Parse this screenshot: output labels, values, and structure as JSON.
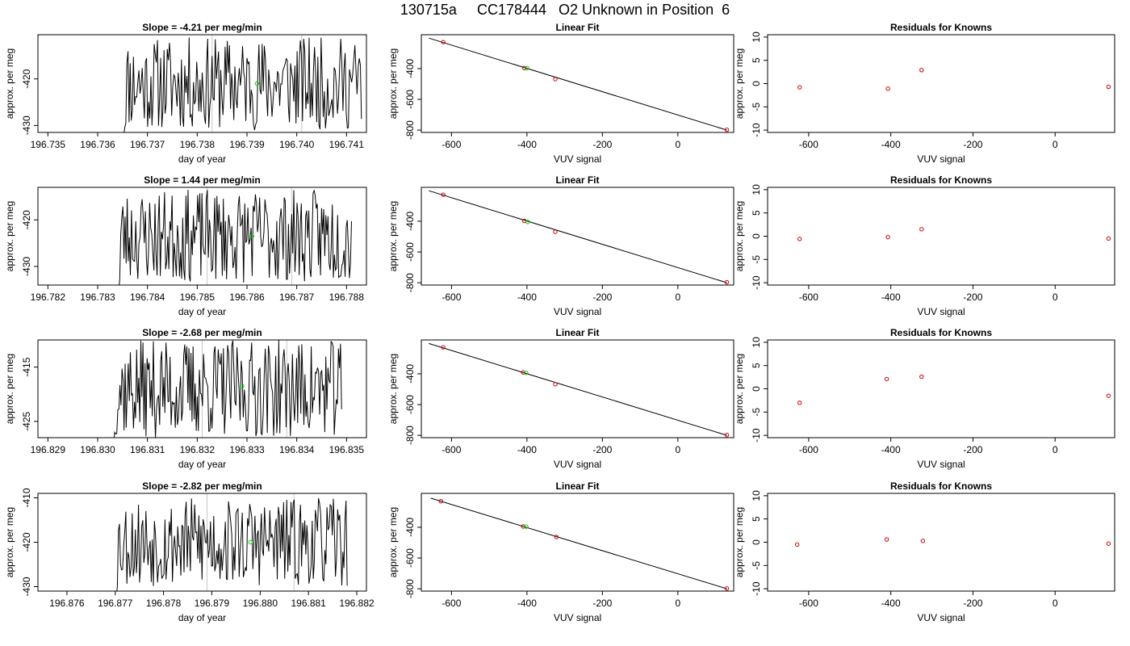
{
  "title": "130715a     CC178444   O2 Unknown in Position  6",
  "colors": {
    "axes": "#000000",
    "trace": "#000000",
    "marker": "#00cc00",
    "point": "#cc0000",
    "vline": "#c8c8c8"
  },
  "chart_data": [
    {
      "type": "line",
      "row": 0,
      "col": 0,
      "title": "Slope =  -4.21  per meg/min",
      "xlabel": "day of year",
      "ylabel": "approx. per meg",
      "xlim": [
        196.7348,
        196.7414
      ],
      "ylim": [
        -431.5,
        -410.5
      ],
      "xticks": [
        196.735,
        196.736,
        196.737,
        196.738,
        196.739,
        196.74,
        196.741
      ],
      "xtick_labels": [
        "196.735",
        "196.736",
        "196.737",
        "196.738",
        "196.739",
        "196.740",
        "196.741"
      ],
      "yticks": [
        -420,
        -430
      ],
      "ytick_labels": [
        "-420",
        "-430"
      ],
      "x_start": 196.7365,
      "x_end": 196.7413,
      "seed": 11,
      "amp": 10,
      "vlines": [
        196.7383,
        196.7401
      ],
      "marker": {
        "x": 196.7392,
        "y": -421
      }
    },
    {
      "type": "line",
      "row": 1,
      "col": 0,
      "title": "Slope =  1.44  per meg/min",
      "xlabel": "day of year",
      "ylabel": "approx. per meg",
      "xlim": [
        196.7818,
        196.7884
      ],
      "ylim": [
        -434,
        -413
      ],
      "xticks": [
        196.782,
        196.783,
        196.784,
        196.785,
        196.786,
        196.787,
        196.788
      ],
      "xtick_labels": [
        "196.782",
        "196.783",
        "196.784",
        "196.785",
        "196.786",
        "196.787",
        "196.788"
      ],
      "yticks": [
        -420,
        -430
      ],
      "ytick_labels": [
        "-420",
        "-430"
      ],
      "x_start": 196.7834,
      "x_end": 196.7881,
      "seed": 23,
      "amp": 10,
      "vlines": [
        196.7852,
        196.7869
      ],
      "marker": {
        "x": 196.7861,
        "y": -423.5
      }
    },
    {
      "type": "line",
      "row": 2,
      "col": 0,
      "title": "Slope =  -2.68  per meg/min",
      "xlabel": "day of year",
      "ylabel": "approx. per meg",
      "xlim": [
        196.8288,
        196.8354
      ],
      "ylim": [
        -428,
        -410
      ],
      "xticks": [
        196.829,
        196.83,
        196.831,
        196.832,
        196.833,
        196.834,
        196.835
      ],
      "xtick_labels": [
        "196.829",
        "196.830",
        "196.831",
        "196.832",
        "196.833",
        "196.834",
        "196.835"
      ],
      "yticks": [
        -415,
        -425
      ],
      "ytick_labels": [
        "-415",
        "-425"
      ],
      "x_start": 196.8303,
      "x_end": 196.8349,
      "seed": 37,
      "amp": 9,
      "vlines": [
        196.8321,
        196.8338
      ],
      "marker": {
        "x": 196.8329,
        "y": -418.5
      }
    },
    {
      "type": "line",
      "row": 3,
      "col": 0,
      "title": "Slope =  -2.82  per meg/min",
      "xlabel": "day of year",
      "ylabel": "approx. per meg",
      "xlim": [
        196.8754,
        196.8822
      ],
      "ylim": [
        -431,
        -409
      ],
      "xticks": [
        196.876,
        196.877,
        196.878,
        196.879,
        196.88,
        196.881,
        196.882
      ],
      "xtick_labels": [
        "196.876",
        "196.877",
        "196.878",
        "196.879",
        "196.880",
        "196.881",
        "196.882"
      ],
      "yticks": [
        -410,
        -420,
        -430
      ],
      "ytick_labels": [
        "-410",
        "-420",
        "-430"
      ],
      "x_start": 196.877,
      "x_end": 196.8818,
      "seed": 53,
      "amp": 10,
      "vlines": [
        196.8789,
        196.8807
      ],
      "marker": {
        "x": 196.8798,
        "y": -420
      }
    },
    {
      "type": "scatter",
      "row": 0,
      "col": 1,
      "title": "Linear Fit",
      "xlabel": "VUV signal",
      "ylabel": "approx. per meg",
      "xlim": [
        -680,
        148
      ],
      "ylim": [
        -815,
        -180
      ],
      "xticks": [
        -600,
        -400,
        -200,
        0
      ],
      "xtick_labels": [
        "-600",
        "-400",
        "-200",
        "0"
      ],
      "yticks": [
        -400,
        -600,
        -800
      ],
      "ytick_labels": [
        "-400",
        "-600",
        "-800"
      ],
      "fit_line": {
        "x": [
          -660,
          130
        ],
        "y": [
          -202,
          -800
        ]
      },
      "points": [
        {
          "x": -622,
          "y": -228
        },
        {
          "x": -407,
          "y": -397
        },
        {
          "x": -325,
          "y": -469
        },
        {
          "x": 130,
          "y": -798
        }
      ],
      "unknowns": [
        {
          "x": -400,
          "y": -397
        }
      ]
    },
    {
      "type": "scatter",
      "row": 1,
      "col": 1,
      "title": "Linear Fit",
      "xlabel": "VUV signal",
      "ylabel": "approx. per meg",
      "xlim": [
        -680,
        148
      ],
      "ylim": [
        -815,
        -180
      ],
      "xticks": [
        -600,
        -400,
        -200,
        0
      ],
      "xtick_labels": [
        "-600",
        "-400",
        "-200",
        "0"
      ],
      "yticks": [
        -400,
        -600,
        -800
      ],
      "ytick_labels": [
        "-400",
        "-600",
        "-800"
      ],
      "fit_line": {
        "x": [
          -660,
          130
        ],
        "y": [
          -202,
          -800
        ]
      },
      "points": [
        {
          "x": -622,
          "y": -228
        },
        {
          "x": -407,
          "y": -398
        },
        {
          "x": -325,
          "y": -469
        },
        {
          "x": 130,
          "y": -797
        }
      ],
      "unknowns": [
        {
          "x": -398,
          "y": -405
        }
      ]
    },
    {
      "type": "scatter",
      "row": 2,
      "col": 1,
      "title": "Linear Fit",
      "xlabel": "VUV signal",
      "ylabel": "approx. per meg",
      "xlim": [
        -680,
        148
      ],
      "ylim": [
        -815,
        -180
      ],
      "xticks": [
        -600,
        -400,
        -200,
        0
      ],
      "xtick_labels": [
        "-600",
        "-400",
        "-200",
        "0"
      ],
      "yticks": [
        -400,
        -600,
        -800
      ],
      "ytick_labels": [
        "-400",
        "-600",
        "-800"
      ],
      "fit_line": {
        "x": [
          -660,
          130
        ],
        "y": [
          -203,
          -800
        ]
      },
      "points": [
        {
          "x": -622,
          "y": -228
        },
        {
          "x": -410,
          "y": -391
        },
        {
          "x": -325,
          "y": -468
        },
        {
          "x": 130,
          "y": -798
        }
      ],
      "unknowns": [
        {
          "x": -402,
          "y": -394
        }
      ]
    },
    {
      "type": "scatter",
      "row": 3,
      "col": 1,
      "title": "Linear Fit",
      "xlabel": "VUV signal",
      "ylabel": "approx. per meg",
      "xlim": [
        -680,
        148
      ],
      "ylim": [
        -815,
        -180
      ],
      "xticks": [
        -600,
        -400,
        -200,
        0
      ],
      "xtick_labels": [
        "-600",
        "-400",
        "-200",
        "0"
      ],
      "yticks": [
        -400,
        -600,
        -800
      ],
      "ytick_labels": [
        "-400",
        "-600",
        "-800"
      ],
      "fit_line": {
        "x": [
          -655,
          130
        ],
        "y": [
          -211,
          -800
        ]
      },
      "points": [
        {
          "x": -628,
          "y": -231
        },
        {
          "x": -410,
          "y": -395
        },
        {
          "x": -322,
          "y": -463
        },
        {
          "x": 130,
          "y": -798
        }
      ],
      "unknowns": [
        {
          "x": -402,
          "y": -396
        }
      ]
    },
    {
      "type": "scatter",
      "row": 0,
      "col": 2,
      "title": "Residuals for Knowns",
      "xlabel": "VUV signal",
      "ylabel": "approx. per meg",
      "xlim": [
        -700,
        145
      ],
      "ylim": [
        -10.5,
        10.5
      ],
      "xticks": [
        -600,
        -400,
        -200,
        0
      ],
      "xtick_labels": [
        "-600",
        "-400",
        "-200",
        "0"
      ],
      "yticks": [
        10,
        5,
        0,
        -5,
        -10
      ],
      "ytick_labels": [
        "10",
        "5",
        "0",
        "-5",
        "-10"
      ],
      "points": [
        {
          "x": -622,
          "y": -0.8
        },
        {
          "x": -407,
          "y": -1.1
        },
        {
          "x": -325,
          "y": 2.9
        },
        {
          "x": 130,
          "y": -0.7
        }
      ]
    },
    {
      "type": "scatter",
      "row": 1,
      "col": 2,
      "title": "Residuals for Knowns",
      "xlabel": "VUV signal",
      "ylabel": "approx. per meg",
      "xlim": [
        -700,
        145
      ],
      "ylim": [
        -10.5,
        10.5
      ],
      "xticks": [
        -600,
        -400,
        -200,
        0
      ],
      "xtick_labels": [
        "-600",
        "-400",
        "-200",
        "0"
      ],
      "yticks": [
        10,
        5,
        0,
        -5,
        -10
      ],
      "ytick_labels": [
        "10",
        "5",
        "0",
        "-5",
        "-10"
      ],
      "points": [
        {
          "x": -622,
          "y": -0.6
        },
        {
          "x": -407,
          "y": -0.2
        },
        {
          "x": -325,
          "y": 1.5
        },
        {
          "x": 130,
          "y": -0.5
        }
      ]
    },
    {
      "type": "scatter",
      "row": 2,
      "col": 2,
      "title": "Residuals for Knowns",
      "xlabel": "VUV signal",
      "ylabel": "approx. per meg",
      "xlim": [
        -700,
        145
      ],
      "ylim": [
        -10.5,
        10.5
      ],
      "xticks": [
        -600,
        -400,
        -200,
        0
      ],
      "xtick_labels": [
        "-600",
        "-400",
        "-200",
        "0"
      ],
      "yticks": [
        10,
        5,
        0,
        -5,
        -10
      ],
      "ytick_labels": [
        "10",
        "5",
        "0",
        "-5",
        "-10"
      ],
      "points": [
        {
          "x": -622,
          "y": -3.0
        },
        {
          "x": -410,
          "y": 2.1
        },
        {
          "x": -325,
          "y": 2.6
        },
        {
          "x": 130,
          "y": -1.5
        }
      ]
    },
    {
      "type": "scatter",
      "row": 3,
      "col": 2,
      "title": "Residuals for Knowns",
      "xlabel": "VUV signal",
      "ylabel": "approx. per meg",
      "xlim": [
        -700,
        145
      ],
      "ylim": [
        -10.5,
        10.5
      ],
      "xticks": [
        -600,
        -400,
        -200,
        0
      ],
      "xtick_labels": [
        "-600",
        "-400",
        "-200",
        "0"
      ],
      "yticks": [
        10,
        5,
        0,
        -5,
        -10
      ],
      "ytick_labels": [
        "10",
        "5",
        "0",
        "-5",
        "-10"
      ],
      "points": [
        {
          "x": -628,
          "y": -0.5
        },
        {
          "x": -410,
          "y": 0.6
        },
        {
          "x": -322,
          "y": 0.3
        },
        {
          "x": 130,
          "y": -0.3
        }
      ]
    }
  ]
}
